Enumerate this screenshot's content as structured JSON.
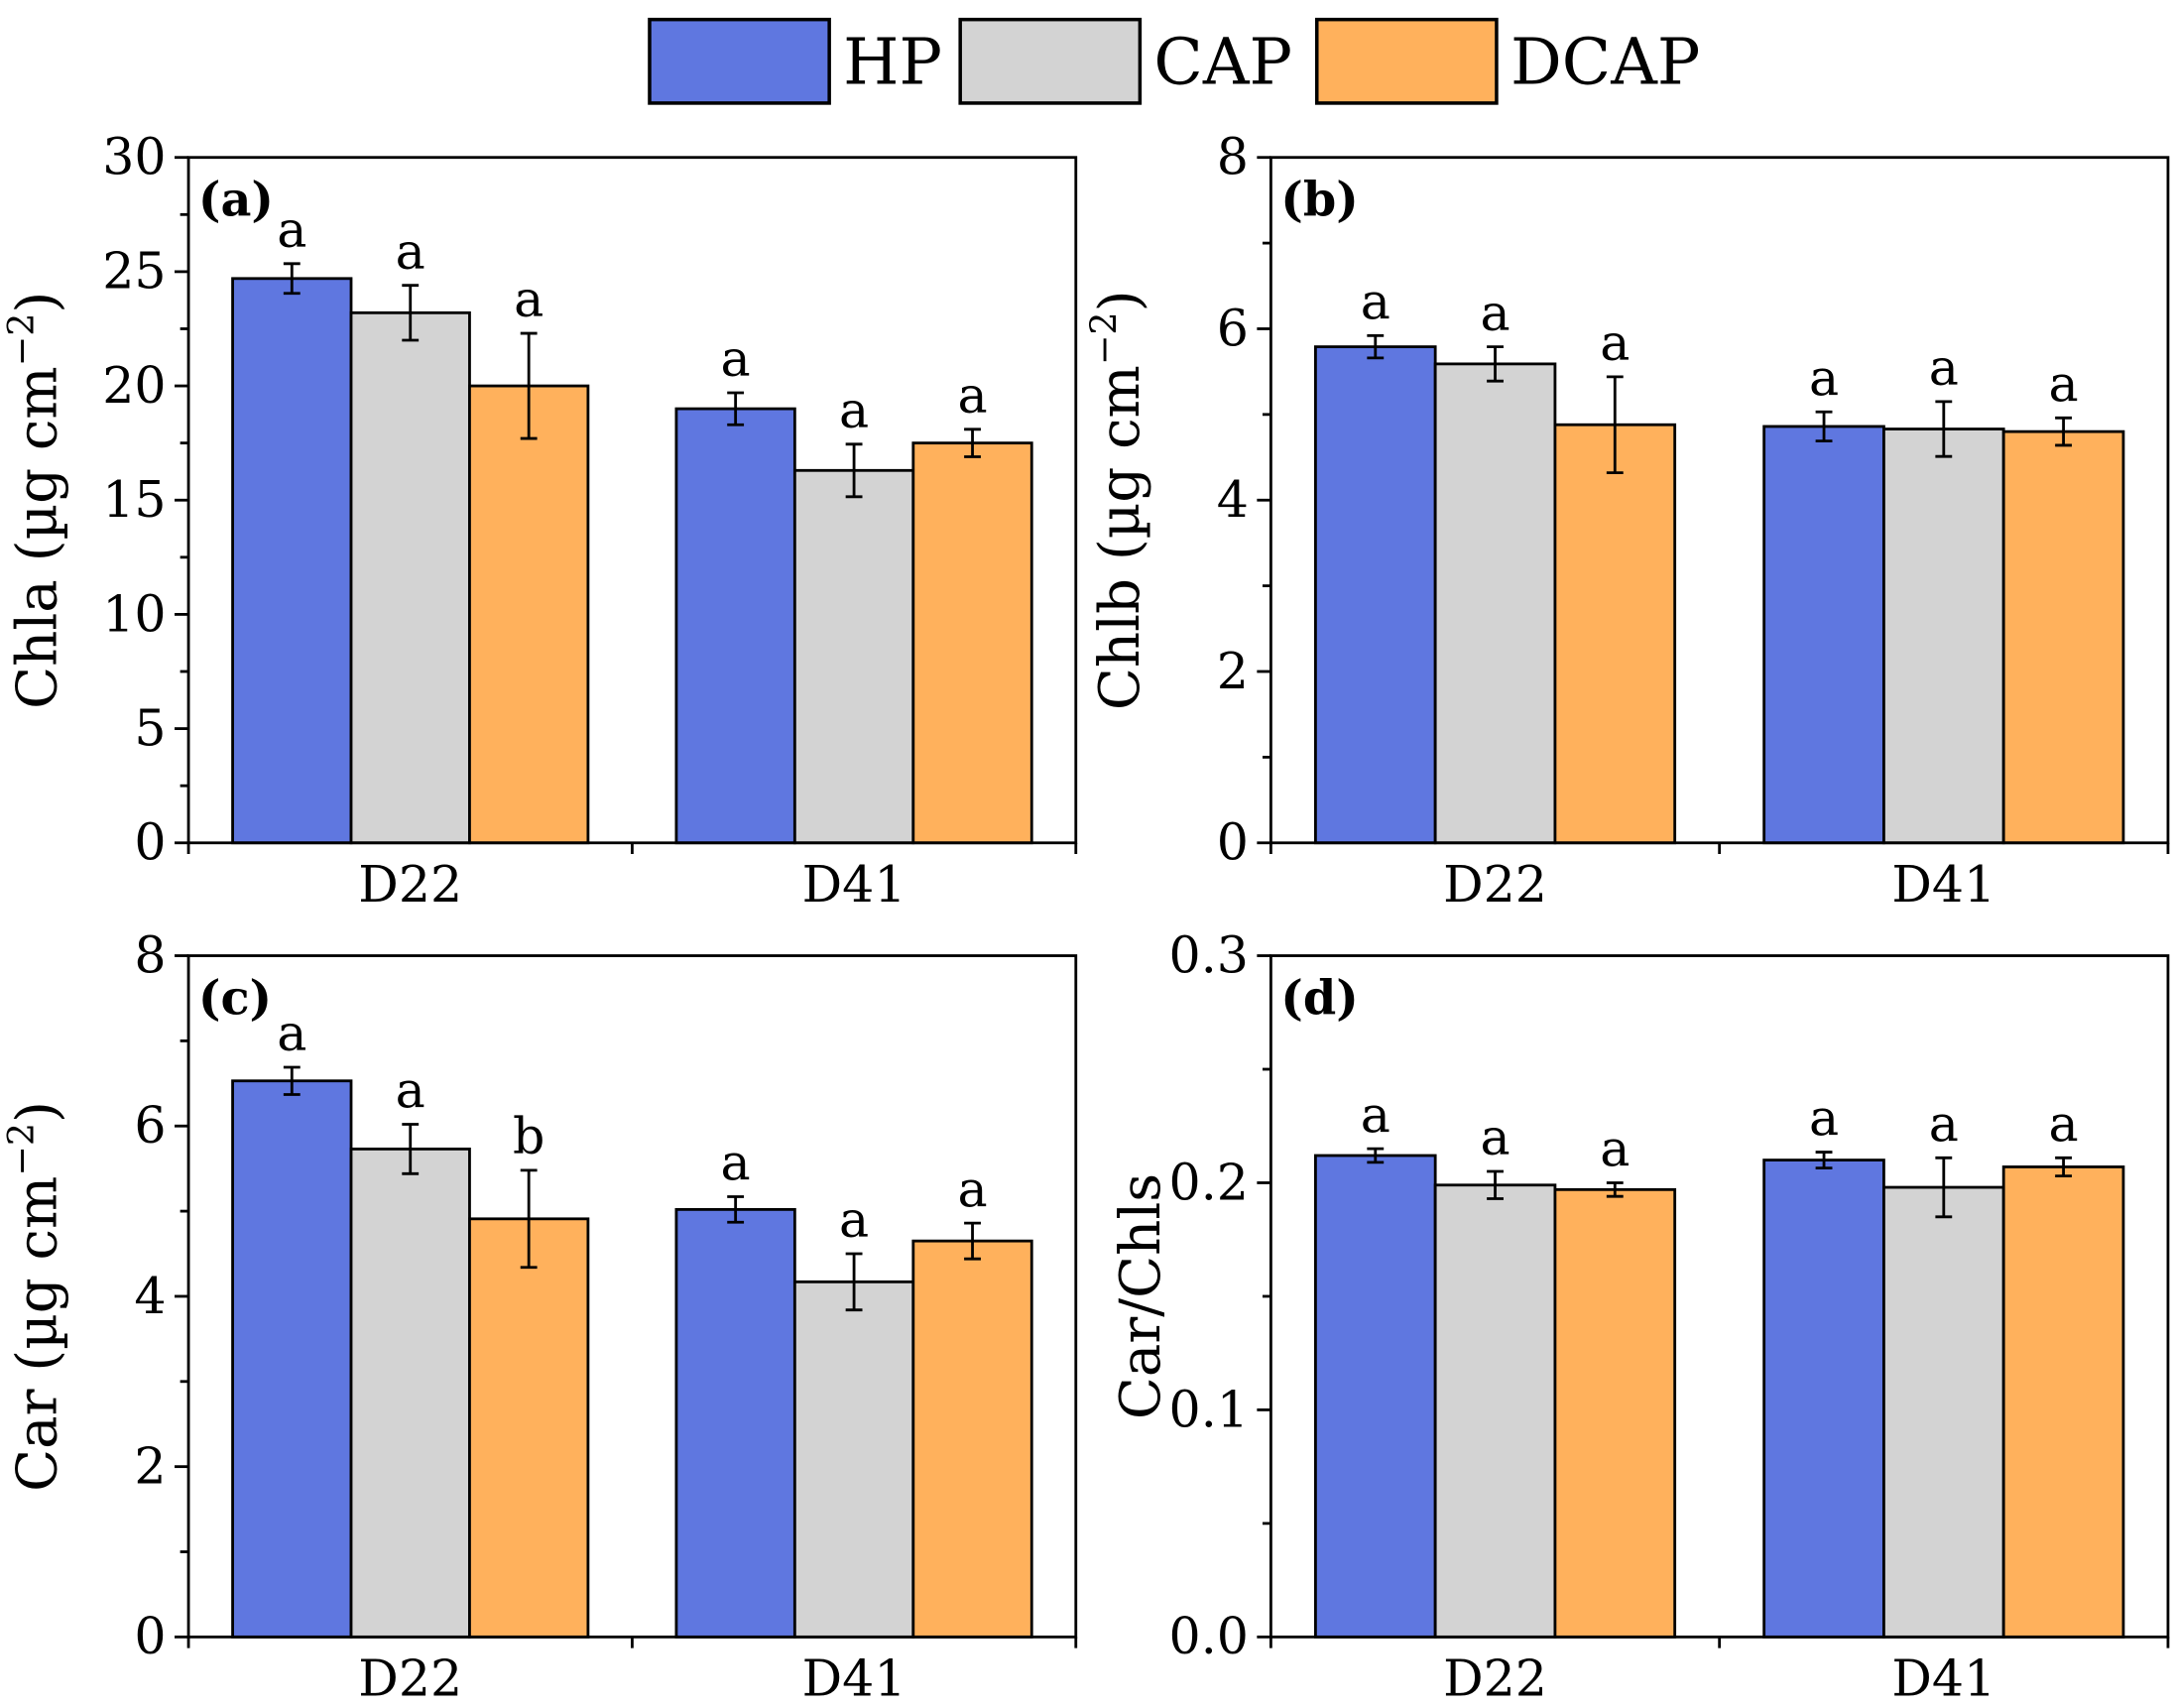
{
  "legend": [
    {
      "name": "HP",
      "color": "#5f77e0"
    },
    {
      "name": "CAP",
      "color": "#d3d3d3"
    },
    {
      "name": "DCAP",
      "color": "#ffb15c"
    }
  ],
  "chart_data": [
    {
      "type": "bar",
      "panel_label": "(a)",
      "ylabel": "Chla (µg cm",
      "ylabel_sup": "−2",
      "ylabel_end": ")",
      "categories": [
        "D22",
        "D41"
      ],
      "ylim": [
        0,
        30
      ],
      "yticks": [
        0,
        5,
        10,
        15,
        20,
        25,
        30
      ],
      "series": [
        {
          "name": "HP",
          "values": [
            24.7,
            19.0
          ],
          "errors": [
            0.65,
            0.7
          ],
          "letters": [
            "a",
            "a"
          ]
        },
        {
          "name": "CAP",
          "values": [
            23.2,
            16.3
          ],
          "errors": [
            1.2,
            1.15
          ],
          "letters": [
            "a",
            "a"
          ]
        },
        {
          "name": "DCAP",
          "values": [
            20.0,
            17.5
          ],
          "errors": [
            2.3,
            0.6
          ],
          "letters": [
            "a",
            "a"
          ]
        }
      ]
    },
    {
      "type": "bar",
      "panel_label": "(b)",
      "ylabel": "Chlb (µg cm",
      "ylabel_sup": "−2",
      "ylabel_end": ")",
      "categories": [
        "D22",
        "D41"
      ],
      "ylim": [
        0,
        8
      ],
      "yticks": [
        0,
        2,
        4,
        6,
        8
      ],
      "series": [
        {
          "name": "HP",
          "values": [
            5.79,
            4.86
          ],
          "errors": [
            0.13,
            0.17
          ],
          "letters": [
            "a",
            "a"
          ]
        },
        {
          "name": "CAP",
          "values": [
            5.59,
            4.83
          ],
          "errors": [
            0.2,
            0.32
          ],
          "letters": [
            "a",
            "a"
          ]
        },
        {
          "name": "DCAP",
          "values": [
            4.88,
            4.8
          ],
          "errors": [
            0.56,
            0.16
          ],
          "letters": [
            "a",
            "a"
          ]
        }
      ]
    },
    {
      "type": "bar",
      "panel_label": "(c)",
      "ylabel": "Car (µg cm",
      "ylabel_sup": "−2",
      "ylabel_end": ")",
      "categories": [
        "D22",
        "D41"
      ],
      "ylim": [
        0,
        8
      ],
      "yticks": [
        0,
        2,
        4,
        6,
        8
      ],
      "series": [
        {
          "name": "HP",
          "values": [
            6.53,
            5.02
          ],
          "errors": [
            0.16,
            0.15
          ],
          "letters": [
            "a",
            "a"
          ]
        },
        {
          "name": "CAP",
          "values": [
            5.73,
            4.17
          ],
          "errors": [
            0.29,
            0.33
          ],
          "letters": [
            "a",
            "a"
          ]
        },
        {
          "name": "DCAP",
          "values": [
            4.91,
            4.65
          ],
          "errors": [
            0.57,
            0.21
          ],
          "letters": [
            "b",
            "a"
          ]
        }
      ]
    },
    {
      "type": "bar",
      "panel_label": "(d)",
      "ylabel": "Car/Chls",
      "ylabel_sup": "",
      "ylabel_end": "",
      "categories": [
        "D22",
        "D41"
      ],
      "ylim": [
        0,
        0.3
      ],
      "yticks": [
        0.0,
        0.1,
        0.2,
        0.3
      ],
      "ytick_decimals": 1,
      "series": [
        {
          "name": "HP",
          "values": [
            0.212,
            0.21
          ],
          "errors": [
            0.003,
            0.0035
          ],
          "letters": [
            "a",
            "a"
          ]
        },
        {
          "name": "CAP",
          "values": [
            0.199,
            0.198
          ],
          "errors": [
            0.006,
            0.013
          ],
          "letters": [
            "a",
            "a"
          ]
        },
        {
          "name": "DCAP",
          "values": [
            0.197,
            0.207
          ],
          "errors": [
            0.003,
            0.004
          ],
          "letters": [
            "a",
            "a"
          ]
        }
      ]
    }
  ]
}
